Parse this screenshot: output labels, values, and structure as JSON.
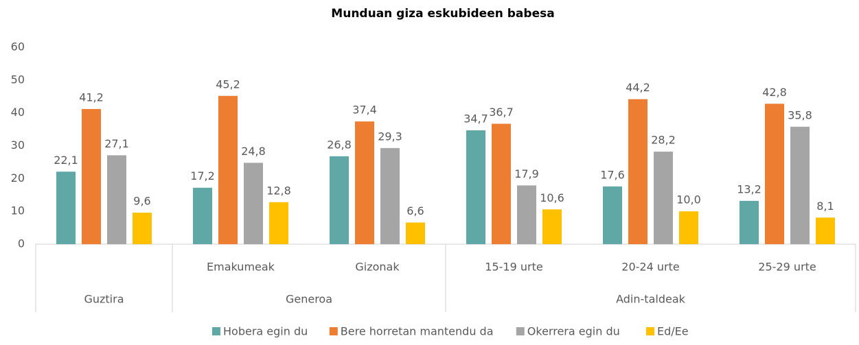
{
  "chart_data": {
    "type": "bar",
    "title": "Munduan giza eskubideen babesa",
    "categories": [
      null,
      "Emakumeak",
      "Gizonak",
      "15-19 urte",
      "20-24 urte",
      "25-29 urte"
    ],
    "groups": [
      {
        "label": "Guztira",
        "size": 1
      },
      {
        "label": "Generoa",
        "size": 2
      },
      {
        "label": "Adin-taldeak",
        "size": 3
      }
    ],
    "series": [
      {
        "name": "Hobera egin du",
        "color": "#5fa8a5",
        "values": [
          22.1,
          17.2,
          26.8,
          34.7,
          17.6,
          13.2
        ],
        "value_labels": [
          "22,1",
          "17,2",
          "26,8",
          "34,7",
          "17,6",
          "13,2"
        ]
      },
      {
        "name": "Bere horretan mantendu da",
        "color": "#ed7d31",
        "values": [
          41.2,
          45.2,
          37.4,
          36.7,
          44.2,
          42.8
        ],
        "value_labels": [
          "41,2",
          "45,2",
          "37,4",
          "36,7",
          "44,2",
          "42,8"
        ]
      },
      {
        "name": "Okerrera egin du",
        "color": "#a5a5a5",
        "values": [
          27.1,
          24.8,
          29.3,
          17.9,
          28.2,
          35.8
        ],
        "value_labels": [
          "27,1",
          "24,8",
          "29,3",
          "17,9",
          "28,2",
          "35,8"
        ]
      },
      {
        "name": "Ed/Ee",
        "color": "#ffc000",
        "values": [
          9.6,
          12.8,
          6.6,
          10.6,
          10.0,
          8.1
        ],
        "value_labels": [
          "9,6",
          "12,8",
          "6,6",
          "10,6",
          "10,0",
          "8,1"
        ]
      }
    ],
    "ylim": [
      0,
      60
    ],
    "yticks": [
      0,
      10,
      20,
      30,
      40,
      50,
      60
    ],
    "grid": false,
    "legend": "bottom"
  }
}
